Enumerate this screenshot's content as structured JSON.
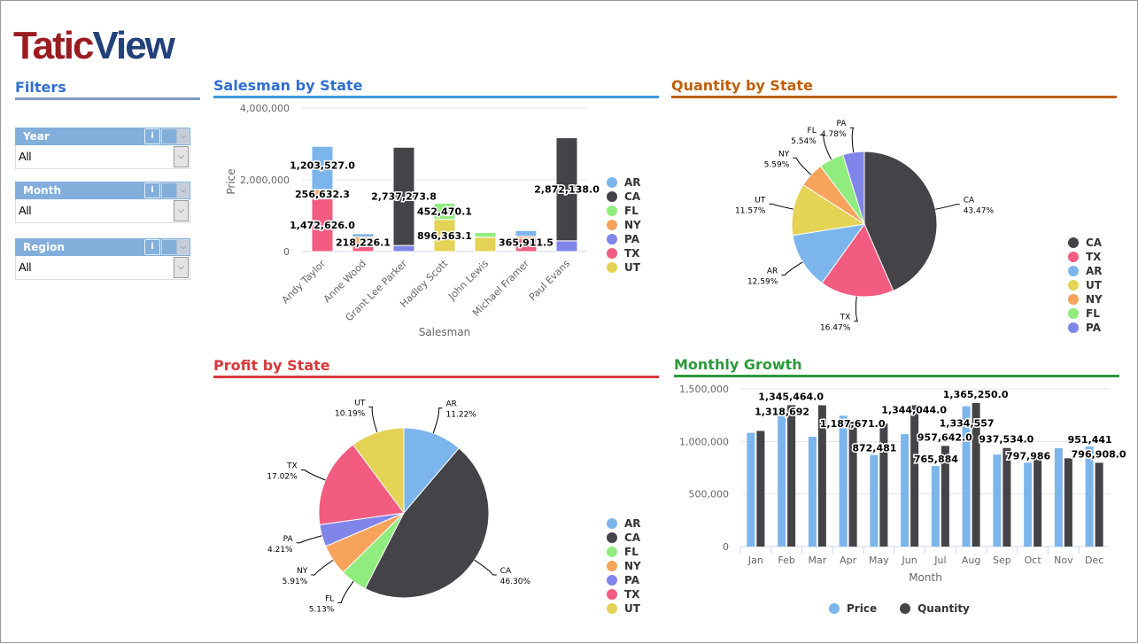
{
  "logo": {
    "part1": "Tatic",
    "part2": "View"
  },
  "filters": {
    "title": "Filters",
    "items": [
      {
        "label": "Year",
        "value": "All"
      },
      {
        "label": "Month",
        "value": "All"
      },
      {
        "label": "Region",
        "value": "All"
      }
    ]
  },
  "colors": {
    "AR": "#7cb5ec",
    "CA": "#434348",
    "FL": "#90ed7d",
    "NY": "#f7a35c",
    "PA": "#8085e9",
    "TX": "#f15c80",
    "UT": "#e4d354"
  },
  "panels": {
    "salesman": "Salesman by State",
    "quantity": "Quantity by State",
    "profit": "Profit by State",
    "monthly": "Monthly Growth"
  },
  "chart_data": [
    {
      "id": "salesman",
      "type": "bar",
      "stacked": true,
      "title": "Salesman by State",
      "xlabel": "Salesman",
      "ylabel": "Price",
      "ylim": [
        0,
        4000000
      ],
      "yticks": [
        "0",
        "2,000,000",
        "4,000,000"
      ],
      "categories": [
        "Andy Taylor",
        "Anne Wood",
        "Grant Lee Parker",
        "Hadley Scott",
        "John Lewis",
        "Michael Framer",
        "Paul Evans"
      ],
      "series": [
        {
          "name": "AR",
          "values": [
            1203527.0,
            90000,
            0,
            0,
            0,
            160000,
            0
          ]
        },
        {
          "name": "CA",
          "values": [
            0,
            0,
            2737273.8,
            0,
            0,
            0,
            2872138.0
          ]
        },
        {
          "name": "FL",
          "values": [
            0,
            0,
            0,
            452470.1,
            130000,
            0,
            0
          ]
        },
        {
          "name": "NY",
          "values": [
            256632.3,
            190000,
            0,
            0,
            0,
            60000,
            0
          ]
        },
        {
          "name": "PA",
          "values": [
            0,
            0,
            170000,
            0,
            0,
            0,
            300000
          ]
        },
        {
          "name": "TX",
          "values": [
            1472626.0,
            218226.1,
            0,
            0,
            0,
            365911.5,
            0
          ]
        },
        {
          "name": "UT",
          "values": [
            0,
            0,
            0,
            896363.1,
            400000,
            0,
            0
          ]
        }
      ],
      "data_labels": [
        [
          0,
          "AR",
          "1,203,527.0"
        ],
        [
          0,
          "NY",
          "256,632.3"
        ],
        [
          0,
          "TX",
          "1,472,626.0"
        ],
        [
          1,
          "TX",
          "218,226.1"
        ],
        [
          2,
          "CA",
          "2,737,273.8"
        ],
        [
          3,
          "FL",
          "452,470.1"
        ],
        [
          3,
          "UT",
          "896,363.1"
        ],
        [
          5,
          "TX",
          "365,911.5"
        ],
        [
          6,
          "CA",
          "2,872,138.0"
        ]
      ],
      "legend": [
        "AR",
        "CA",
        "FL",
        "NY",
        "PA",
        "TX",
        "UT"
      ]
    },
    {
      "id": "quantity",
      "type": "pie",
      "title": "Quantity by State",
      "slices": [
        {
          "name": "CA",
          "value": 43.47
        },
        {
          "name": "TX",
          "value": 16.47
        },
        {
          "name": "AR",
          "value": 12.59
        },
        {
          "name": "UT",
          "value": 11.57
        },
        {
          "name": "NY",
          "value": 5.59
        },
        {
          "name": "FL",
          "value": 5.54
        },
        {
          "name": "PA",
          "value": 4.78
        }
      ],
      "legend": [
        "CA",
        "TX",
        "AR",
        "UT",
        "NY",
        "FL",
        "PA"
      ]
    },
    {
      "id": "profit",
      "type": "pie",
      "title": "Profit by State",
      "slices": [
        {
          "name": "AR",
          "value": 11.22
        },
        {
          "name": "CA",
          "value": 46.3
        },
        {
          "name": "FL",
          "value": 5.13
        },
        {
          "name": "NY",
          "value": 5.91
        },
        {
          "name": "PA",
          "value": 4.21
        },
        {
          "name": "TX",
          "value": 17.02
        },
        {
          "name": "UT",
          "value": 10.19
        }
      ],
      "legend": [
        "AR",
        "CA",
        "FL",
        "NY",
        "PA",
        "TX",
        "UT"
      ]
    },
    {
      "id": "monthly",
      "type": "bar",
      "title": "Monthly Growth",
      "xlabel": "Month",
      "ylim": [
        0,
        1500000
      ],
      "yticks": [
        "0",
        "500,000",
        "1,000,000",
        "1,500,000"
      ],
      "categories": [
        "Jan",
        "Feb",
        "Mar",
        "Apr",
        "May",
        "Jun",
        "Jul",
        "Aug",
        "Sep",
        "Oct",
        "Nov",
        "Dec"
      ],
      "series": [
        {
          "name": "Price",
          "color": "#7cb5ec",
          "values": [
            1082000,
            1318692,
            1045000,
            1245000,
            872481,
            1070000,
            765884,
            1334557,
            875000,
            797986,
            935000,
            951441
          ],
          "labels": [
            null,
            "1,318,692",
            null,
            null,
            "872,481",
            null,
            "765,884",
            "1,334,557",
            null,
            "797,986",
            null,
            "951,441"
          ]
        },
        {
          "name": "Quantity",
          "color": "#434348",
          "values": [
            1100000,
            1345464,
            1344000,
            1187671,
            1170000,
            1344044,
            957642,
            1365250,
            937534,
            840000,
            840000,
            796908
          ],
          "labels": [
            null,
            "1,345,464.0",
            null,
            "1,187,671.0",
            null,
            "1,344,044.0",
            "957,642.0",
            "1,365,250.0",
            "937,534.0",
            null,
            null,
            "796,908.0"
          ]
        }
      ],
      "legend": [
        "Price",
        "Quantity"
      ]
    }
  ]
}
